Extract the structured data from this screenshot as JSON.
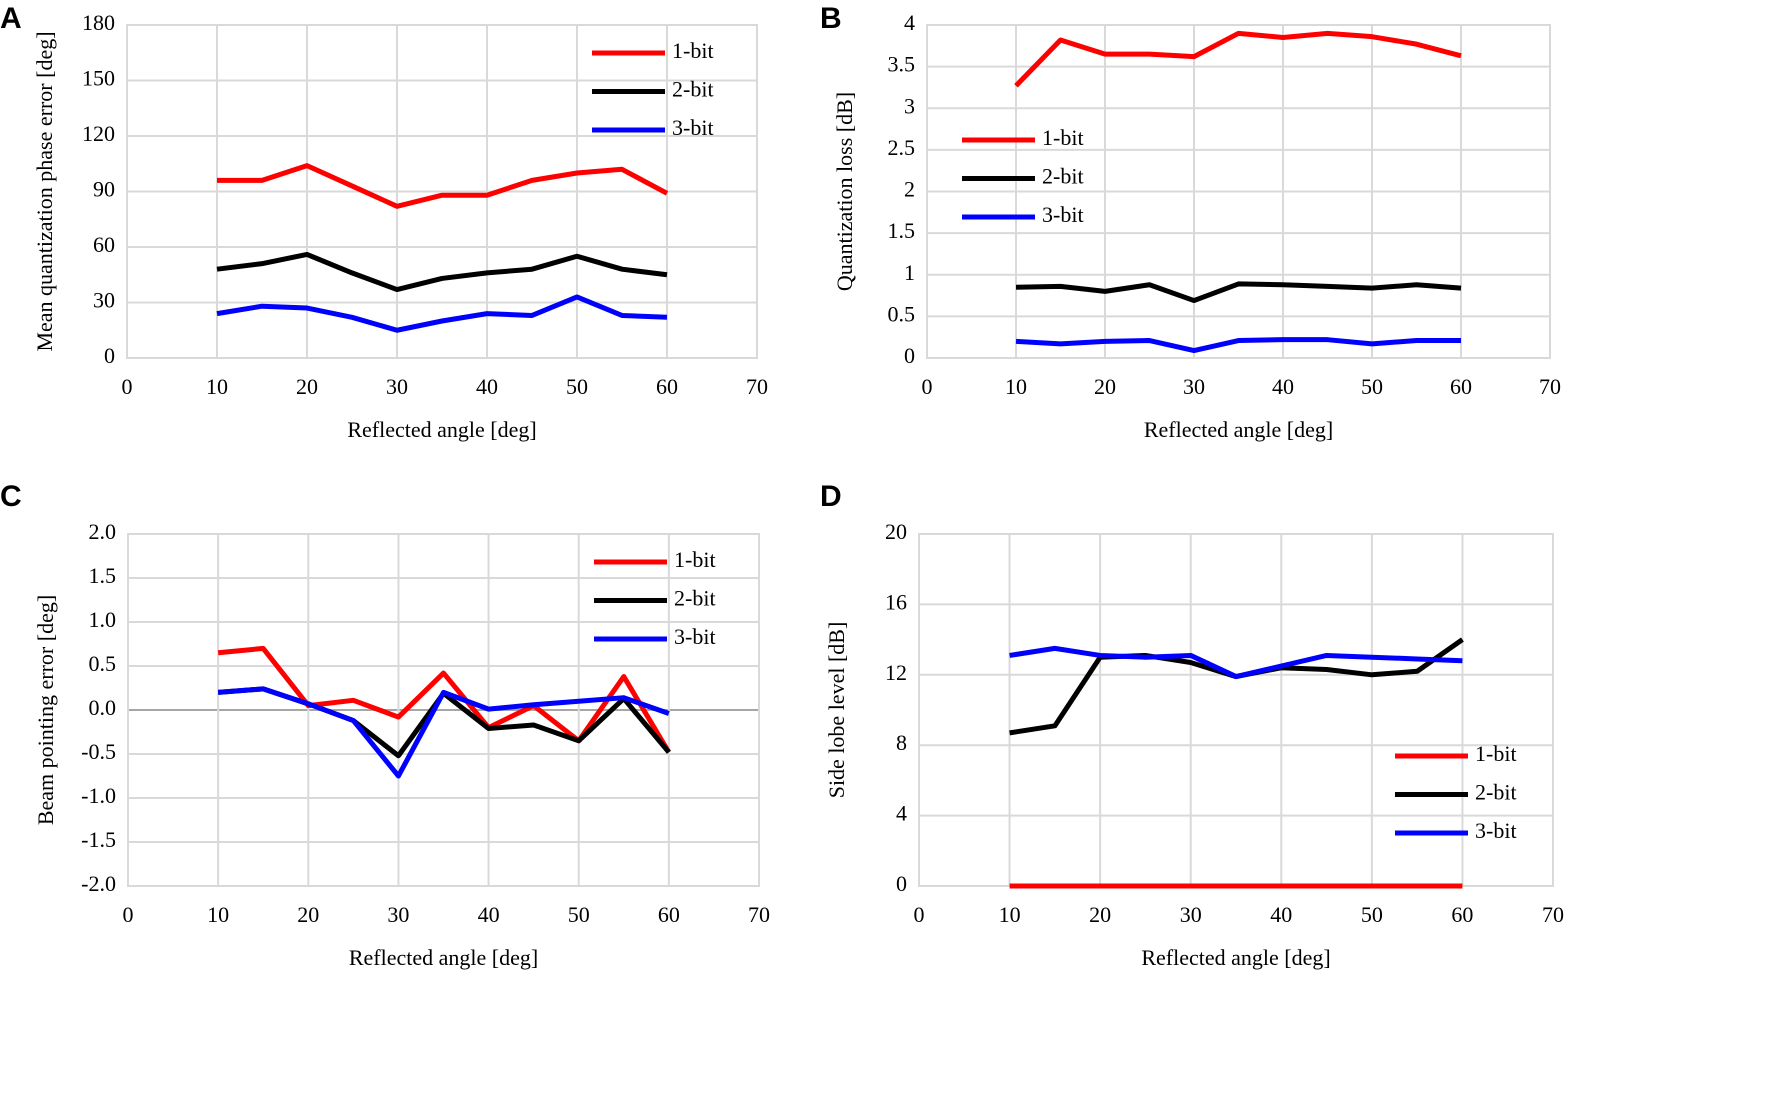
{
  "chart_data": [
    {
      "type": "line",
      "label": "A",
      "ylabel": "Mean quantization phase error [deg]",
      "xlabel": "Reflected angle [deg]",
      "x": [
        10,
        15,
        20,
        25,
        30,
        35,
        40,
        45,
        50,
        55,
        60
      ],
      "xlim": [
        0,
        70
      ],
      "xticks": [
        0,
        10,
        20,
        30,
        40,
        50,
        60,
        70
      ],
      "ylim": [
        0,
        180
      ],
      "yticks": [
        0,
        30,
        60,
        90,
        120,
        150,
        180
      ],
      "grid": true,
      "legend": "upper right",
      "series": [
        {
          "name": "1-bit",
          "color": "#ff0000",
          "values": [
            96,
            96,
            104,
            93,
            82,
            88,
            88,
            96,
            100,
            102,
            89
          ]
        },
        {
          "name": "2-bit",
          "color": "#000000",
          "values": [
            48,
            51,
            56,
            46,
            37,
            43,
            46,
            48,
            55,
            48,
            45
          ]
        },
        {
          "name": "3-bit",
          "color": "#0000ff",
          "values": [
            24,
            28,
            27,
            22,
            15,
            20,
            24,
            23,
            33,
            23,
            22
          ]
        }
      ]
    },
    {
      "type": "line",
      "label": "B",
      "ylabel": "Quantization loss [dB]",
      "xlabel": "Reflected angle [deg]",
      "xlabel_color": "#808080",
      "x": [
        10,
        15,
        20,
        25,
        30,
        35,
        40,
        45,
        50,
        55,
        60
      ],
      "xlim": [
        0,
        70
      ],
      "xticks": [
        0,
        10,
        20,
        30,
        40,
        50,
        60,
        70
      ],
      "ylim": [
        0,
        4
      ],
      "yticks": [
        0,
        0.5,
        1,
        1.5,
        2,
        2.5,
        3,
        3.5,
        4
      ],
      "grid": true,
      "legend": "center left",
      "series": [
        {
          "name": "1-bit",
          "color": "#ff0000",
          "values": [
            3.27,
            3.82,
            3.65,
            3.65,
            3.62,
            3.9,
            3.85,
            3.9,
            3.86,
            3.77,
            3.63
          ]
        },
        {
          "name": "2-bit",
          "color": "#000000",
          "values": [
            0.85,
            0.86,
            0.8,
            0.88,
            0.69,
            0.89,
            0.88,
            0.86,
            0.84,
            0.88,
            0.84
          ]
        },
        {
          "name": "3-bit",
          "color": "#0000ff",
          "values": [
            0.2,
            0.17,
            0.2,
            0.21,
            0.09,
            0.21,
            0.22,
            0.22,
            0.17,
            0.21,
            0.21
          ]
        }
      ]
    },
    {
      "type": "line",
      "label": "C",
      "ylabel": "Beam pointing error [deg]",
      "xlabel": "Reflected angle [deg]",
      "x": [
        10,
        15,
        20,
        25,
        30,
        35,
        40,
        45,
        50,
        55,
        60
      ],
      "xlim": [
        0,
        70
      ],
      "xticks": [
        0,
        10,
        20,
        30,
        40,
        50,
        60,
        70
      ],
      "ylim": [
        -2,
        2
      ],
      "yticks": [
        {
          "value": -2,
          "label": "-2.0"
        },
        -1.5,
        {
          "value": -1,
          "label": "-1.0"
        },
        -0.5,
        {
          "value": 0,
          "label": "0.0"
        },
        0.5,
        {
          "value": 1,
          "label": "1.0"
        },
        1.5,
        {
          "value": 2,
          "label": "2.0"
        }
      ],
      "grid": true,
      "legend": "upper right",
      "series": [
        {
          "name": "1-bit",
          "color": "#ff0000",
          "values": [
            0.65,
            0.7,
            0.05,
            0.11,
            -0.08,
            0.42,
            -0.2,
            0.05,
            -0.35,
            0.38,
            -0.48
          ]
        },
        {
          "name": "2-bit",
          "color": "#000000",
          "values": [
            0.2,
            0.24,
            0.07,
            -0.12,
            -0.52,
            0.19,
            -0.21,
            -0.17,
            -0.35,
            0.13,
            -0.48
          ]
        },
        {
          "name": "3-bit",
          "color": "#0000ff",
          "values": [
            0.2,
            0.24,
            0.07,
            -0.12,
            -0.75,
            0.2,
            0.01,
            0.06,
            0.1,
            0.14,
            -0.04
          ]
        }
      ]
    },
    {
      "type": "line",
      "label": "D",
      "ylabel": "Side lobe level [dB]",
      "xlabel": "Reflected angle [deg]",
      "x": [
        10,
        15,
        20,
        25,
        30,
        35,
        40,
        45,
        50,
        55,
        60
      ],
      "xlim": [
        0,
        70
      ],
      "xticks": [
        0,
        10,
        20,
        30,
        40,
        50,
        60,
        70
      ],
      "ylim": [
        0,
        20
      ],
      "yticks": [
        0,
        4,
        8,
        12,
        16,
        20
      ],
      "grid": true,
      "legend": "lower right",
      "series": [
        {
          "name": "1-bit",
          "color": "#ff0000",
          "values": [
            0,
            0,
            0,
            0,
            0,
            0,
            0,
            0,
            0,
            0,
            0
          ]
        },
        {
          "name": "2-bit",
          "color": "#000000",
          "values": [
            8.7,
            9.1,
            13,
            13.1,
            12.7,
            11.9,
            12.4,
            12.3,
            12,
            12.2,
            14
          ]
        },
        {
          "name": "3-bit",
          "color": "#0000ff",
          "values": [
            13.1,
            13.5,
            13.1,
            13,
            13.1,
            11.9,
            12.5,
            13.1,
            13,
            12.9,
            12.8
          ]
        }
      ]
    }
  ]
}
